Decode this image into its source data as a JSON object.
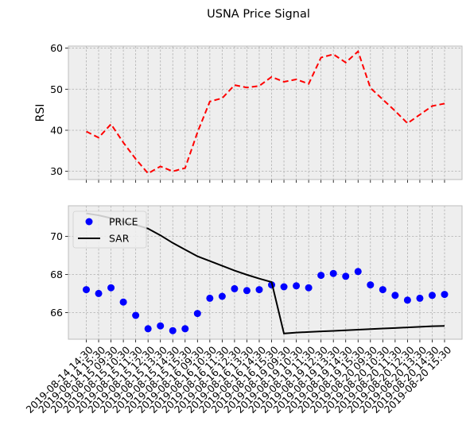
{
  "chart_data": {
    "title": "USNA Price Signal",
    "x": [
      "2019-08-14 14:30",
      "2019-08-14 15:30",
      "2019-08-15 09:30",
      "2019-08-15 10:30",
      "2019-08-15 11:30",
      "2019-08-15 12:30",
      "2019-08-15 13:30",
      "2019-08-15 14:30",
      "2019-08-15 15:30",
      "2019-08-16 09:30",
      "2019-08-16 10:30",
      "2019-08-16 11:30",
      "2019-08-16 12:30",
      "2019-08-16 13:30",
      "2019-08-16 14:30",
      "2019-08-16 15:30",
      "2019-08-19 09:30",
      "2019-08-19 10:30",
      "2019-08-19 11:30",
      "2019-08-19 12:30",
      "2019-08-19 13:30",
      "2019-08-19 14:30",
      "2019-08-19 15:30",
      "2019-08-20 09:30",
      "2019-08-20 10:30",
      "2019-08-20 11:30",
      "2019-08-20 12:30",
      "2019-08-20 13:30",
      "2019-08-20 14:30",
      "2019-08-20 15:30"
    ],
    "panels": [
      {
        "type": "line",
        "ylabel": "RSI",
        "ylim": [
          28,
          60.5
        ],
        "yticks": [
          30,
          40,
          50,
          60
        ],
        "grid": true,
        "series": [
          {
            "style": "dashed",
            "color": "#ff0000",
            "values": [
              39.7,
              38.2,
              41.5,
              37.0,
              33.0,
              29.5,
              31.2,
              30.0,
              30.8,
              39.5,
              47.0,
              47.8,
              51.0,
              50.4,
              50.8,
              53.0,
              51.8,
              52.4,
              51.3,
              57.7,
              58.5,
              56.5,
              59.2,
              50.3,
              47.5,
              44.7,
              41.7,
              43.8,
              45.9,
              46.5
            ]
          }
        ]
      },
      {
        "type": "line",
        "ylim": [
          64.6,
          71.6
        ],
        "yticks": [
          66,
          68,
          70
        ],
        "grid": true,
        "legend": "top-left",
        "series": [
          {
            "name": "PRICE",
            "style": "markers",
            "color": "#0000ff",
            "values": [
              67.2,
              67.0,
              67.3,
              66.55,
              65.85,
              65.15,
              65.3,
              65.05,
              65.15,
              65.95,
              66.75,
              66.85,
              67.25,
              67.15,
              67.2,
              67.45,
              67.35,
              67.4,
              67.3,
              67.95,
              68.05,
              67.9,
              68.15,
              67.45,
              67.2,
              66.9,
              66.65,
              66.75,
              66.9,
              66.95
            ]
          },
          {
            "name": "SAR",
            "style": "solid",
            "color": "#000000",
            "values": [
              71.2,
              71.1,
              70.95,
              70.75,
              70.6,
              70.4,
              70.05,
              69.65,
              69.3,
              68.95,
              68.7,
              68.45,
              68.2,
              67.98,
              67.78,
              67.6,
              64.9,
              64.95,
              64.98,
              65.01,
              65.04,
              65.07,
              65.1,
              65.13,
              65.16,
              65.19,
              65.22,
              65.25,
              65.28,
              65.3
            ]
          }
        ]
      }
    ]
  }
}
